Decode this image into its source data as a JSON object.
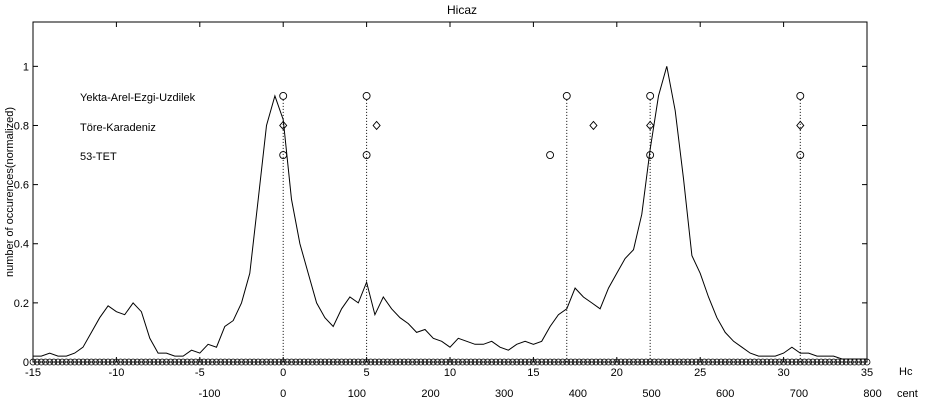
{
  "chart_data": {
    "type": "line",
    "title": "Hicaz",
    "ylabel": "number of occurences(normalized)",
    "xlabel_hc": "Hc",
    "xlabel_cent": "cent",
    "xlim": [
      -15,
      35
    ],
    "ylim": [
      0,
      1.15
    ],
    "hc_ticks": [
      -15,
      -10,
      -5,
      0,
      5,
      10,
      15,
      20,
      25,
      30,
      35
    ],
    "hc_tick_labels": [
      "-15",
      "-10",
      "-5",
      "0",
      "5",
      "10",
      "15",
      "20",
      "25",
      "30",
      "35"
    ],
    "cent_ticks": [
      -100,
      0,
      100,
      200,
      300,
      400,
      500,
      600,
      700,
      800
    ],
    "cent_tick_labels": [
      "-100",
      "0",
      "100",
      "200",
      "300",
      "400",
      "500",
      "600",
      "700",
      "800"
    ],
    "y_ticks": [
      0,
      0.2,
      0.4,
      0.6,
      0.8,
      1
    ],
    "y_tick_labels": [
      "0",
      "0.2",
      "0.4",
      "0.6",
      "0.8",
      "1"
    ],
    "grid": false,
    "colors": {
      "line": "#000000",
      "background": "#ffffff"
    },
    "pitch_curve": {
      "x": [
        -15,
        -14.5,
        -14,
        -13.5,
        -13,
        -12.5,
        -12,
        -11.5,
        -11,
        -10.5,
        -10,
        -9.5,
        -9,
        -8.5,
        -8,
        -7.5,
        -7,
        -6.5,
        -6,
        -5.5,
        -5,
        -4.5,
        -4,
        -3.5,
        -3,
        -2.5,
        -2,
        -1.5,
        -1,
        -0.5,
        0,
        0.5,
        1,
        1.5,
        2,
        2.5,
        3,
        3.5,
        4,
        4.5,
        5,
        5.5,
        6,
        6.5,
        7,
        7.5,
        8,
        8.5,
        9,
        9.5,
        10,
        10.5,
        11,
        11.5,
        12,
        12.5,
        13,
        13.5,
        14,
        14.5,
        15,
        15.5,
        16,
        16.5,
        17,
        17.5,
        18,
        18.5,
        19,
        19.5,
        20,
        20.5,
        21,
        21.5,
        22,
        22.5,
        23,
        23.5,
        24,
        24.5,
        25,
        25.5,
        26,
        26.5,
        27,
        27.5,
        28,
        28.5,
        29,
        29.5,
        30,
        30.5,
        31,
        31.5,
        32,
        32.5,
        33,
        33.5,
        34,
        34.5,
        35
      ],
      "y": [
        0.02,
        0.02,
        0.03,
        0.02,
        0.02,
        0.03,
        0.05,
        0.1,
        0.15,
        0.19,
        0.17,
        0.16,
        0.2,
        0.17,
        0.08,
        0.03,
        0.03,
        0.02,
        0.02,
        0.04,
        0.03,
        0.06,
        0.05,
        0.12,
        0.14,
        0.2,
        0.3,
        0.55,
        0.8,
        0.9,
        0.82,
        0.55,
        0.4,
        0.3,
        0.2,
        0.15,
        0.12,
        0.18,
        0.22,
        0.2,
        0.27,
        0.16,
        0.22,
        0.18,
        0.15,
        0.13,
        0.1,
        0.11,
        0.08,
        0.07,
        0.05,
        0.08,
        0.07,
        0.06,
        0.06,
        0.07,
        0.05,
        0.04,
        0.06,
        0.07,
        0.06,
        0.07,
        0.12,
        0.16,
        0.18,
        0.25,
        0.22,
        0.2,
        0.18,
        0.25,
        0.3,
        0.35,
        0.38,
        0.5,
        0.72,
        0.9,
        1.0,
        0.85,
        0.62,
        0.36,
        0.3,
        0.22,
        0.15,
        0.1,
        0.07,
        0.05,
        0.03,
        0.02,
        0.02,
        0.02,
        0.03,
        0.05,
        0.03,
        0.03,
        0.02,
        0.02,
        0.02,
        0.01,
        0.01,
        0.01,
        0.01
      ]
    },
    "series": [
      {
        "name": "Yekta-Arel-Ezgi-Uzdilek",
        "marker": "circle",
        "y": 0.9,
        "x": [
          0,
          5,
          17,
          22,
          31
        ]
      },
      {
        "name": "Töre-Karadeniz",
        "marker": "diamond",
        "y": 0.8,
        "x": [
          0,
          5.6,
          18.6,
          22,
          31
        ]
      },
      {
        "name": "53-TET",
        "marker": "circle",
        "y": 0.7,
        "x": [
          0,
          5,
          16,
          22,
          31
        ]
      }
    ],
    "vertical_lines_x": [
      0,
      5,
      17,
      22,
      31
    ],
    "baseline_circles": {
      "marker": "circle",
      "y": 0,
      "x_start": -15,
      "x_end": 35,
      "step": 0.25
    }
  }
}
